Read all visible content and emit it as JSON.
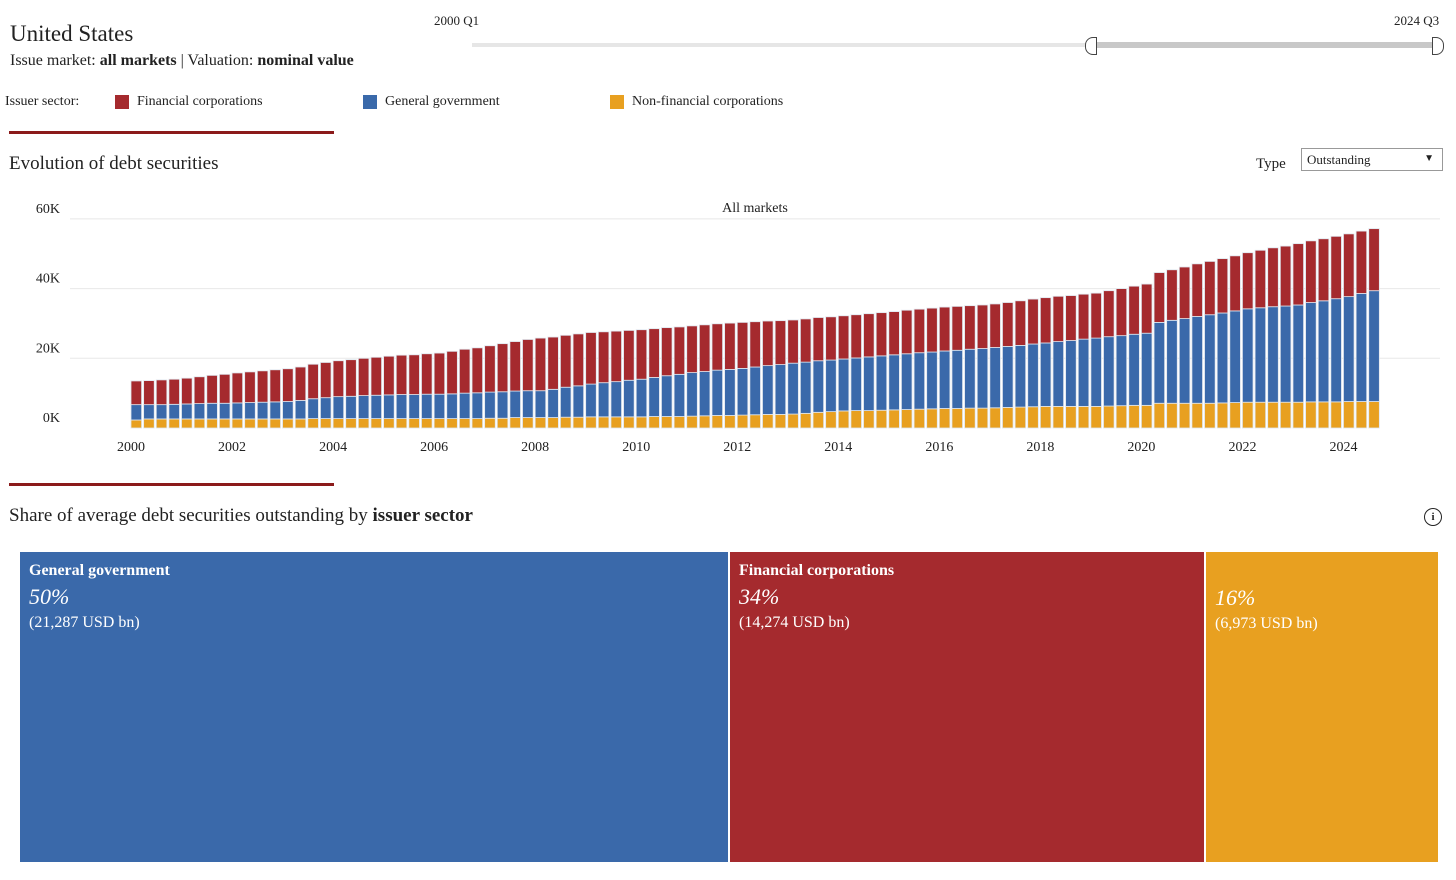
{
  "header": {
    "country": "United States",
    "issue_market_label": "Issue market: ",
    "issue_market": "all markets",
    "sep": " | Valuation: ",
    "valuation": "nominal value"
  },
  "slider": {
    "start": "2000 Q1",
    "end": "2024 Q3",
    "selected_fraction_start": 0.64,
    "selected_fraction_end": 1.0
  },
  "legend": {
    "label": "Issuer sector:",
    "items": [
      {
        "name": "Financial corporations",
        "color": "#a52a2e"
      },
      {
        "name": "General government",
        "color": "#3a69aa"
      },
      {
        "name": "Non-financial corporations",
        "color": "#e8a020"
      }
    ]
  },
  "section1": {
    "title": "Evolution of debt securities",
    "type_label": "Type",
    "type_value": "Outstanding"
  },
  "section2": {
    "title_pre": "Share of average debt securities outstanding by ",
    "title_bold": "issuer sector",
    "info_icon": "info-icon"
  },
  "treemap": [
    {
      "name": "General government",
      "pct": "50%",
      "value": "(21,287 USD bn)",
      "color": "#3a69aa"
    },
    {
      "name": "Financial corporations",
      "pct": "34%",
      "value": "(14,274 USD bn)",
      "color": "#a52a2e"
    },
    {
      "name": "",
      "pct": "16%",
      "value": "(6,973 USD bn)",
      "color": "#e8a020"
    }
  ],
  "chart_data": {
    "type": "bar",
    "stacked": true,
    "title": "All markets",
    "unit": "USD bn",
    "ylim": [
      0,
      60000
    ],
    "yticks": [
      "0K",
      "20K",
      "40K",
      "60K"
    ],
    "xticks": [
      "2000",
      "2002",
      "2004",
      "2006",
      "2008",
      "2010",
      "2012",
      "2014",
      "2016",
      "2018",
      "2020",
      "2022",
      "2024"
    ],
    "start_year": 2000,
    "n_quarters": 99,
    "series": [
      {
        "name": "Non-financial corporations",
        "color": "#e8a020",
        "values": [
          2.3,
          2.6,
          2.6,
          2.6,
          2.6,
          2.6,
          2.6,
          2.6,
          2.6,
          2.6,
          2.6,
          2.6,
          2.6,
          2.6,
          2.7,
          2.7,
          2.7,
          2.7,
          2.7,
          2.7,
          2.7,
          2.7,
          2.7,
          2.7,
          2.7,
          2.7,
          2.7,
          2.7,
          2.8,
          2.8,
          3.0,
          3.0,
          3.0,
          3.0,
          3.1,
          3.1,
          3.2,
          3.2,
          3.2,
          3.2,
          3.2,
          3.3,
          3.3,
          3.3,
          3.4,
          3.5,
          3.6,
          3.6,
          3.7,
          3.8,
          3.9,
          3.9,
          4.0,
          4.2,
          4.5,
          4.7,
          4.9,
          5.0,
          5.0,
          5.1,
          5.2,
          5.3,
          5.4,
          5.5,
          5.6,
          5.6,
          5.7,
          5.7,
          5.8,
          5.9,
          6.0,
          6.1,
          6.2,
          6.2,
          6.2,
          6.2,
          6.2,
          6.3,
          6.4,
          6.5,
          6.5,
          7.1,
          7.1,
          7.1,
          7.1,
          7.1,
          7.2,
          7.3,
          7.4,
          7.4,
          7.4,
          7.4,
          7.4,
          7.5,
          7.5,
          7.5,
          7.6,
          7.6,
          7.6
        ]
      },
      {
        "name": "General government",
        "color": "#3a69aa",
        "values": [
          4.4,
          4.1,
          4.1,
          4.2,
          4.3,
          4.4,
          4.5,
          4.5,
          4.6,
          4.7,
          4.8,
          4.9,
          5.0,
          5.3,
          5.7,
          6.0,
          6.3,
          6.4,
          6.6,
          6.7,
          6.8,
          6.9,
          6.9,
          7.0,
          7.0,
          7.1,
          7.3,
          7.4,
          7.5,
          7.6,
          7.6,
          7.7,
          7.7,
          8.1,
          8.6,
          9.0,
          9.4,
          9.8,
          10.1,
          10.5,
          10.8,
          11.2,
          11.7,
          12.1,
          12.5,
          12.7,
          13.0,
          13.2,
          13.4,
          13.7,
          14.0,
          14.3,
          14.6,
          14.7,
          14.8,
          14.8,
          14.9,
          15.1,
          15.4,
          15.6,
          15.8,
          16.0,
          16.2,
          16.3,
          16.5,
          16.7,
          16.9,
          17.1,
          17.3,
          17.5,
          17.7,
          18.0,
          18.2,
          18.6,
          18.9,
          19.3,
          19.6,
          19.9,
          20.1,
          20.4,
          20.7,
          23.2,
          23.8,
          24.3,
          24.9,
          25.4,
          25.8,
          26.3,
          26.8,
          27.1,
          27.4,
          27.6,
          27.9,
          28.5,
          29.0,
          29.6,
          30.1,
          31.0,
          31.8
        ]
      },
      {
        "name": "Financial corporations",
        "color": "#a52a2e",
        "values": [
          6.8,
          6.9,
          7.1,
          7.2,
          7.4,
          7.7,
          8.0,
          8.3,
          8.6,
          8.8,
          9.0,
          9.2,
          9.4,
          9.6,
          9.9,
          10.1,
          10.3,
          10.5,
          10.7,
          10.9,
          11.1,
          11.3,
          11.4,
          11.6,
          11.8,
          12.2,
          12.6,
          12.9,
          13.3,
          13.8,
          14.2,
          14.7,
          15.1,
          15.0,
          14.9,
          14.9,
          14.8,
          14.6,
          14.5,
          14.3,
          14.2,
          14.0,
          13.8,
          13.6,
          13.4,
          13.4,
          13.3,
          13.3,
          13.2,
          13.0,
          12.8,
          12.6,
          12.4,
          12.4,
          12.4,
          12.4,
          12.4,
          12.4,
          12.4,
          12.4,
          12.4,
          12.5,
          12.5,
          12.6,
          12.6,
          12.6,
          12.5,
          12.5,
          12.5,
          12.6,
          12.8,
          12.9,
          13.0,
          13.0,
          12.9,
          12.9,
          12.9,
          13.2,
          13.5,
          13.8,
          14.1,
          14.3,
          14.5,
          14.8,
          15.1,
          15.3,
          15.6,
          15.8,
          16.1,
          16.5,
          16.9,
          17.2,
          17.6,
          17.7,
          17.8,
          17.9,
          18.0,
          17.9,
          17.8
        ]
      }
    ],
    "values_unit_note": "thousands of USD bn",
    "legend": "top"
  }
}
